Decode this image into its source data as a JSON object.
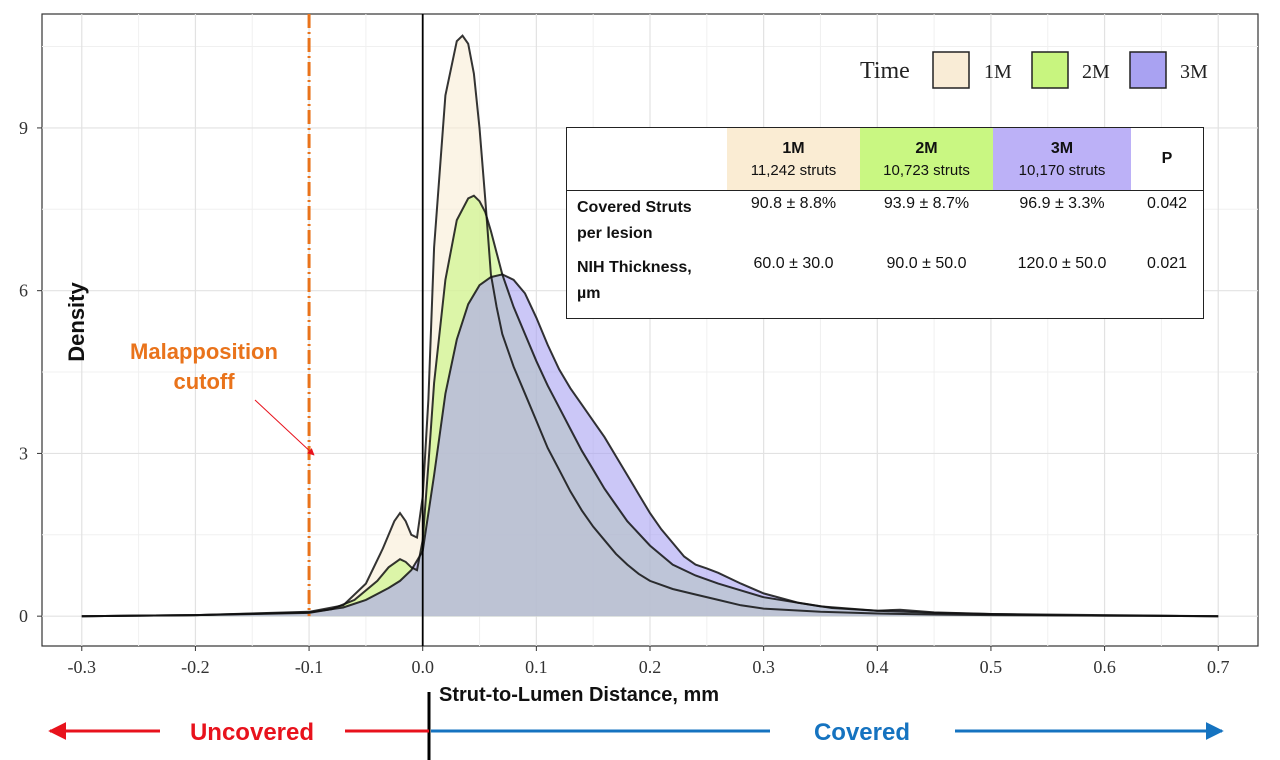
{
  "chart_data": {
    "type": "area",
    "title": "",
    "xlabel": "Strut-to-Lumen Distance, mm",
    "ylabel": "Density",
    "xlim": [
      -0.335,
      0.735
    ],
    "ylim": [
      -0.55,
      11.1
    ],
    "x_ticks": [
      "-0.3",
      "-0.2",
      "-0.1",
      "0.0",
      "0.1",
      "0.2",
      "0.3",
      "0.4",
      "0.5",
      "0.6",
      "0.7"
    ],
    "y_ticks": [
      "0",
      "3",
      "6",
      "9"
    ],
    "grid": true,
    "legend": {
      "title": "Time",
      "placement": "top-right",
      "entries": [
        {
          "label": "1M",
          "color": "#f9ecd6"
        },
        {
          "label": "2M",
          "color": "#c8f57f"
        },
        {
          "label": "3M",
          "color": "#a9a2f2"
        }
      ]
    },
    "series": [
      {
        "name": "1M",
        "color": "#f9ecd6",
        "x": [
          -0.3,
          -0.2,
          -0.1,
          -0.07,
          -0.05,
          -0.035,
          -0.025,
          -0.02,
          -0.015,
          -0.01,
          -0.005,
          0.0,
          0.005,
          0.01,
          0.02,
          0.03,
          0.035,
          0.04,
          0.045,
          0.05,
          0.055,
          0.06,
          0.065,
          0.07,
          0.08,
          0.09,
          0.1,
          0.11,
          0.12,
          0.13,
          0.14,
          0.15,
          0.16,
          0.17,
          0.18,
          0.19,
          0.2,
          0.22,
          0.24,
          0.26,
          0.28,
          0.3,
          0.35,
          0.4,
          0.45,
          0.5,
          0.6,
          0.7
        ],
        "y": [
          0.0,
          0.02,
          0.08,
          0.2,
          0.6,
          1.25,
          1.75,
          1.9,
          1.75,
          1.5,
          1.45,
          2.2,
          4.0,
          6.8,
          9.6,
          10.6,
          10.7,
          10.55,
          10.0,
          9.0,
          7.7,
          6.3,
          5.7,
          5.2,
          4.6,
          4.1,
          3.6,
          3.1,
          2.7,
          2.3,
          1.95,
          1.65,
          1.4,
          1.15,
          0.95,
          0.78,
          0.65,
          0.5,
          0.4,
          0.3,
          0.2,
          0.14,
          0.08,
          0.05,
          0.03,
          0.02,
          0.01,
          0.0
        ]
      },
      {
        "name": "2M",
        "color": "#c8f57f",
        "x": [
          -0.3,
          -0.2,
          -0.1,
          -0.08,
          -0.06,
          -0.04,
          -0.03,
          -0.02,
          -0.015,
          -0.01,
          -0.005,
          0.0,
          0.005,
          0.01,
          0.02,
          0.03,
          0.04,
          0.045,
          0.05,
          0.055,
          0.06,
          0.065,
          0.07,
          0.08,
          0.09,
          0.1,
          0.11,
          0.12,
          0.13,
          0.14,
          0.15,
          0.16,
          0.17,
          0.18,
          0.2,
          0.22,
          0.24,
          0.26,
          0.3,
          0.35,
          0.4,
          0.45,
          0.5,
          0.6,
          0.7
        ],
        "y": [
          0.0,
          0.02,
          0.06,
          0.13,
          0.3,
          0.65,
          0.9,
          1.05,
          1.0,
          0.9,
          0.85,
          1.4,
          2.8,
          4.3,
          6.2,
          7.3,
          7.7,
          7.75,
          7.65,
          7.45,
          7.1,
          6.7,
          6.3,
          5.7,
          5.2,
          4.7,
          4.25,
          3.85,
          3.45,
          3.05,
          2.7,
          2.35,
          2.05,
          1.75,
          1.3,
          0.95,
          0.75,
          0.6,
          0.35,
          0.18,
          0.1,
          0.06,
          0.04,
          0.02,
          0.0
        ]
      },
      {
        "name": "3M",
        "color": "#a9a2f2",
        "x": [
          -0.3,
          -0.2,
          -0.1,
          -0.07,
          -0.05,
          -0.03,
          -0.02,
          -0.01,
          0.0,
          0.01,
          0.02,
          0.03,
          0.04,
          0.05,
          0.06,
          0.07,
          0.08,
          0.09,
          0.1,
          0.11,
          0.12,
          0.13,
          0.14,
          0.15,
          0.16,
          0.17,
          0.18,
          0.19,
          0.2,
          0.21,
          0.22,
          0.23,
          0.24,
          0.25,
          0.26,
          0.28,
          0.3,
          0.33,
          0.36,
          0.4,
          0.42,
          0.45,
          0.5,
          0.55,
          0.6,
          0.7
        ],
        "y": [
          0.0,
          0.02,
          0.07,
          0.16,
          0.3,
          0.52,
          0.65,
          0.85,
          1.2,
          2.6,
          4.1,
          5.1,
          5.75,
          6.1,
          6.25,
          6.3,
          6.2,
          5.95,
          5.5,
          5.0,
          4.55,
          4.2,
          3.9,
          3.6,
          3.3,
          2.95,
          2.6,
          2.25,
          1.9,
          1.6,
          1.35,
          1.1,
          0.95,
          0.88,
          0.8,
          0.6,
          0.42,
          0.25,
          0.15,
          0.1,
          0.12,
          0.07,
          0.04,
          0.02,
          0.01,
          0.0
        ]
      }
    ],
    "cutoff": {
      "x": -0.1,
      "color": "#e9731b",
      "label_line1": "Malapposition",
      "label_line2": "cutoff"
    },
    "direction_labels": {
      "left": "Uncovered",
      "right": "Covered",
      "left_color": "#e8121c",
      "right_color": "#1573c0"
    }
  },
  "stats_table": {
    "headers": [
      {
        "label": "",
        "sub": ""
      },
      {
        "label": "1M",
        "sub": "11,242 struts"
      },
      {
        "label": "2M",
        "sub": "10,723 struts"
      },
      {
        "label": "3M",
        "sub": "10,170 struts"
      },
      {
        "label": "P",
        "sub": ""
      }
    ],
    "rows": [
      {
        "label_line1": "Covered Struts",
        "label_line2": "per lesion",
        "v1m": "90.8 ± 8.8%",
        "v2m": "93.9 ± 8.7%",
        "v3m": "96.9 ± 3.3%",
        "p": "0.042"
      },
      {
        "label_line1": "NIH Thickness,",
        "label_line2": "µm",
        "v1m": "60.0 ± 30.0",
        "v2m": "90.0 ± 50.0",
        "v3m": "120.0 ± 50.0",
        "p": "0.021"
      }
    ]
  }
}
